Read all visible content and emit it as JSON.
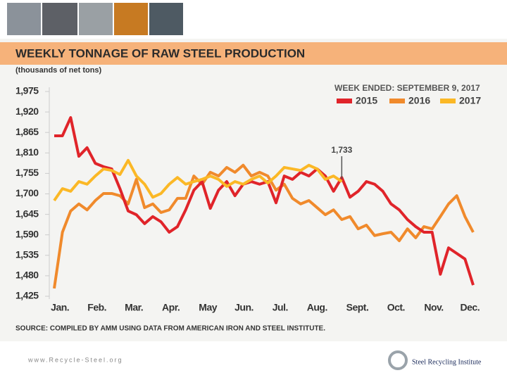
{
  "chart_data": {
    "type": "line",
    "title": "WEEKLY TONNAGE OF RAW STEEL PRODUCTION",
    "subtitle": "(thousands of net tons)",
    "legend_title": "WEEK ENDED: SEPTEMBER 9, 2017",
    "source": "SOURCE: COMPILED BY AMM USING DATA FROM AMERICAN IRON AND STEEL INSTITUTE.",
    "annotation": "1,733",
    "x": [
      1,
      2,
      3,
      4,
      5,
      6,
      7,
      8,
      9,
      10,
      11,
      12,
      13,
      14,
      15,
      16,
      17,
      18,
      19,
      20,
      21,
      22,
      23,
      24,
      25,
      26,
      27,
      28,
      29,
      30,
      31,
      32,
      33,
      34,
      35,
      36,
      37,
      38,
      39,
      40,
      41,
      42,
      43,
      44,
      45,
      46,
      47,
      48,
      49,
      50,
      51,
      52
    ],
    "xlim": [
      1,
      52
    ],
    "xticks": [
      {
        "value": 1.7,
        "label": "Jan."
      },
      {
        "value": 6.2,
        "label": "Feb."
      },
      {
        "value": 10.7,
        "label": "Mar."
      },
      {
        "value": 15.2,
        "label": "Apr."
      },
      {
        "value": 19.7,
        "label": "May"
      },
      {
        "value": 24.1,
        "label": "Jun."
      },
      {
        "value": 28.5,
        "label": "Jul."
      },
      {
        "value": 33.0,
        "label": "Aug."
      },
      {
        "value": 37.9,
        "label": "Sept."
      },
      {
        "value": 42.6,
        "label": "Oct."
      },
      {
        "value": 47.2,
        "label": "Nov."
      },
      {
        "value": 51.6,
        "label": "Dec."
      }
    ],
    "ylim": [
      1425,
      1975
    ],
    "yticks": [
      {
        "value": 1425,
        "label": "1,425"
      },
      {
        "value": 1480,
        "label": "1,480"
      },
      {
        "value": 1535,
        "label": "1,535"
      },
      {
        "value": 1590,
        "label": "1,590"
      },
      {
        "value": 1645,
        "label": "1,645"
      },
      {
        "value": 1700,
        "label": "1,700"
      },
      {
        "value": 1755,
        "label": "1,755"
      },
      {
        "value": 1810,
        "label": "1,810"
      },
      {
        "value": 1865,
        "label": "1,865"
      },
      {
        "value": 1920,
        "label": "1,920"
      },
      {
        "value": 1975,
        "label": "1,975"
      }
    ],
    "grid": false,
    "series": [
      {
        "name": "2015",
        "color": "#e0242a",
        "values": [
          1856,
          1856,
          1905,
          1801,
          1824,
          1782,
          1773,
          1767,
          1714,
          1654,
          1644,
          1620,
          1639,
          1625,
          1597,
          1612,
          1657,
          1710,
          1733,
          1661,
          1710,
          1733,
          1695,
          1726,
          1733,
          1726,
          1733,
          1676,
          1748,
          1739,
          1758,
          1748,
          1767,
          1748,
          1707,
          1744,
          1691,
          1707,
          1733,
          1726,
          1707,
          1673,
          1657,
          1631,
          1612,
          1597,
          1597,
          1484,
          1555,
          1540,
          1525,
          1455
        ]
      },
      {
        "name": "2016",
        "color": "#f08a2c",
        "values": [
          1446,
          1597,
          1654,
          1673,
          1657,
          1682,
          1701,
          1701,
          1695,
          1673,
          1739,
          1663,
          1673,
          1650,
          1657,
          1688,
          1688,
          1748,
          1726,
          1758,
          1748,
          1771,
          1758,
          1777,
          1748,
          1758,
          1748,
          1710,
          1726,
          1688,
          1673,
          1682,
          1663,
          1644,
          1657,
          1631,
          1639,
          1606,
          1616,
          1588,
          1593,
          1597,
          1574,
          1606,
          1582,
          1612,
          1606,
          1639,
          1673,
          1695,
          1639,
          1597
        ]
      },
      {
        "name": "2017",
        "color": "#fbb826",
        "values": [
          1682,
          1714,
          1707,
          1733,
          1726,
          1748,
          1767,
          1763,
          1752,
          1790,
          1748,
          1726,
          1691,
          1701,
          1726,
          1744,
          1726,
          1733,
          1739,
          1748,
          1739,
          1720,
          1733,
          1726,
          1739,
          1748,
          1729,
          1748,
          1771,
          1767,
          1763,
          1777,
          1767,
          1739,
          1748,
          1733,
          null,
          null,
          null,
          null,
          null,
          null,
          null,
          null,
          null,
          null,
          null,
          null,
          null,
          null,
          null,
          null
        ]
      }
    ]
  },
  "footer": {
    "url": "www.Recycle-Steel.org",
    "logo": "Steel Recycling Institute"
  }
}
